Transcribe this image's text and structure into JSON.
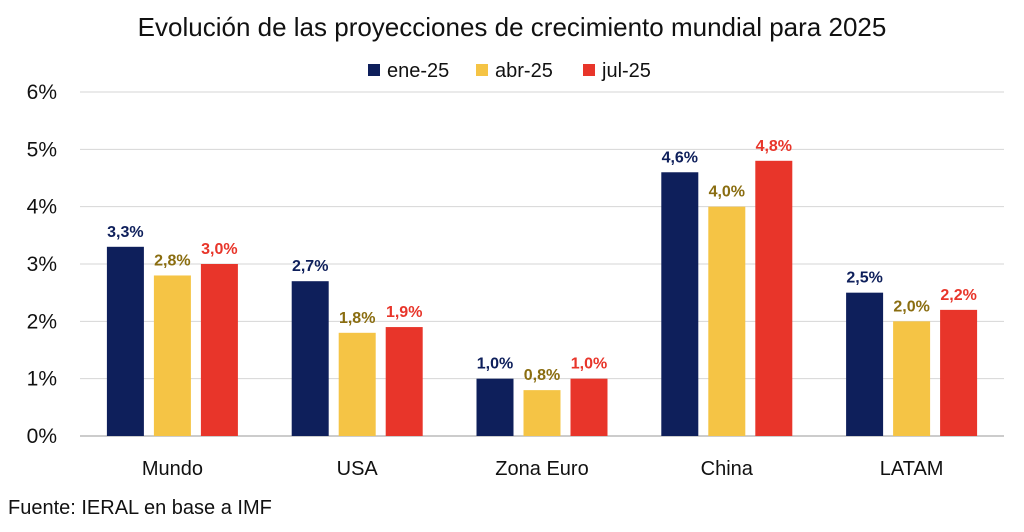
{
  "chart_data": {
    "type": "bar",
    "title": "Evolución de las proyecciones de crecimiento mundial para 2025",
    "categories": [
      "Mundo",
      "USA",
      "Zona Euro",
      "China",
      "LATAM"
    ],
    "series": [
      {
        "name": "ene-25",
        "color": "#0e1f5b",
        "label_color": "#0e1f5b",
        "values": [
          3.3,
          2.7,
          1.0,
          4.6,
          2.5
        ],
        "labels": [
          "3,3%",
          "2,7%",
          "1,0%",
          "4,6%",
          "2,5%"
        ]
      },
      {
        "name": "abr-25",
        "color": "#f5c445",
        "label_color": "#8a6d10",
        "values": [
          2.8,
          1.8,
          0.8,
          4.0,
          2.0
        ],
        "labels": [
          "2,8%",
          "1,8%",
          "0,8%",
          "4,0%",
          "2,0%"
        ]
      },
      {
        "name": "jul-25",
        "color": "#e8352a",
        "label_color": "#e8352a",
        "values": [
          3.0,
          1.9,
          1.0,
          4.8,
          2.2
        ],
        "labels": [
          "3,0%",
          "1,9%",
          "1,0%",
          "4,8%",
          "2,2%"
        ]
      }
    ],
    "ylim": [
      0,
      6
    ],
    "yticks": [
      "0%",
      "1%",
      "2%",
      "3%",
      "4%",
      "5%",
      "6%"
    ],
    "grid": true,
    "legend_position": "top-center",
    "xlabel": "",
    "ylabel": ""
  },
  "source": "Fuente: IERAL en base a IMF"
}
